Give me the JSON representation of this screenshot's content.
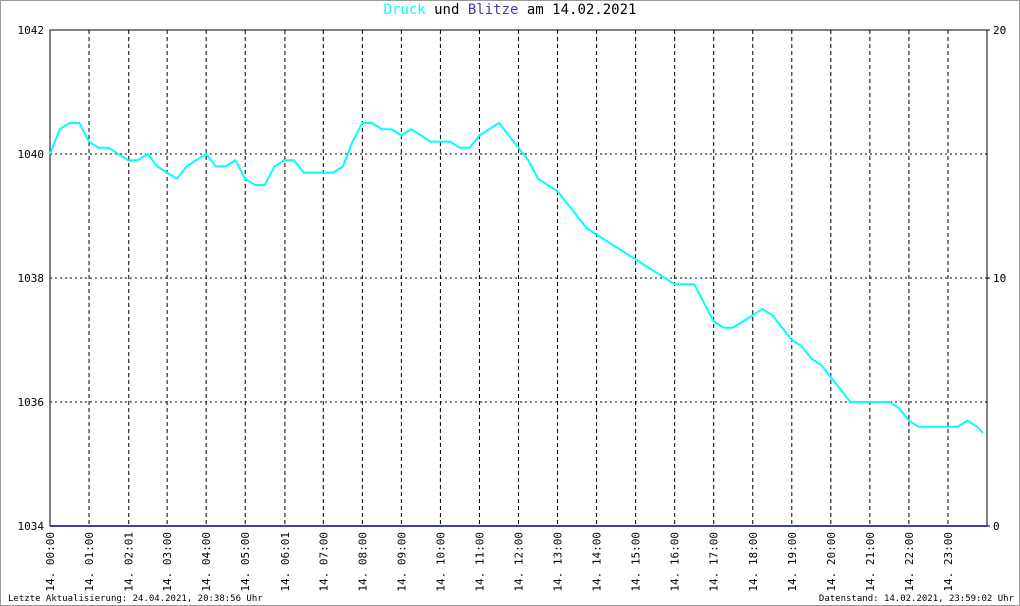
{
  "chart_data": {
    "type": "line",
    "title_connector": "und",
    "title_date": "am 14.02.2021",
    "footer_left": "Letzte Aktualisierung: 24.04.2021, 20:38:56 Uhr",
    "footer_right": "Datenstand: 14.02.2021, 23:59:02 Uhr",
    "xlim": [
      0,
      24
    ],
    "xticks": [
      {
        "value": 0,
        "label": "14. 00:00"
      },
      {
        "value": 1,
        "label": "14. 01:00"
      },
      {
        "value": 2.017,
        "label": "14. 02:01"
      },
      {
        "value": 3,
        "label": "14. 03:00"
      },
      {
        "value": 4,
        "label": "14. 04:00"
      },
      {
        "value": 5,
        "label": "14. 05:00"
      },
      {
        "value": 6.017,
        "label": "14. 06:01"
      },
      {
        "value": 7,
        "label": "14. 07:00"
      },
      {
        "value": 8,
        "label": "14. 08:00"
      },
      {
        "value": 9,
        "label": "14. 09:00"
      },
      {
        "value": 10,
        "label": "14. 10:00"
      },
      {
        "value": 11,
        "label": "14. 11:00"
      },
      {
        "value": 12,
        "label": "14. 12:00"
      },
      {
        "value": 13,
        "label": "14. 13:00"
      },
      {
        "value": 14,
        "label": "14. 14:00"
      },
      {
        "value": 15,
        "label": "14. 15:00"
      },
      {
        "value": 16,
        "label": "14. 16:00"
      },
      {
        "value": 17,
        "label": "14. 17:00"
      },
      {
        "value": 18,
        "label": "14. 18:00"
      },
      {
        "value": 19,
        "label": "14. 19:00"
      },
      {
        "value": 20,
        "label": "14. 20:00"
      },
      {
        "value": 21,
        "label": "14. 21:00"
      },
      {
        "value": 22,
        "label": "14. 22:00"
      },
      {
        "value": 23,
        "label": "14. 23:00"
      }
    ],
    "ylim": [
      1034,
      1042
    ],
    "yticks": [
      1034,
      1036,
      1038,
      1040,
      1042
    ],
    "y2lim": [
      0,
      20
    ],
    "y2ticks": [
      0,
      10,
      20
    ],
    "grid": true,
    "series": [
      {
        "name": "Druck",
        "color": "#00ffff",
        "x": [
          0,
          0.25,
          0.5,
          0.75,
          1,
          1.25,
          1.5,
          1.75,
          2,
          2.25,
          2.5,
          2.75,
          3,
          3.25,
          3.5,
          3.75,
          4,
          4.25,
          4.5,
          4.75,
          5,
          5.25,
          5.5,
          5.75,
          6,
          6.25,
          6.5,
          6.75,
          7,
          7.25,
          7.5,
          7.75,
          8,
          8.25,
          8.5,
          8.75,
          9,
          9.25,
          9.5,
          9.75,
          10,
          10.25,
          10.5,
          10.75,
          11,
          11.25,
          11.5,
          11.75,
          12,
          12.25,
          12.5,
          12.75,
          13,
          13.25,
          13.5,
          13.75,
          14,
          14.25,
          14.5,
          14.75,
          15,
          15.25,
          15.5,
          15.75,
          16,
          16.25,
          16.5,
          16.75,
          17,
          17.25,
          17.5,
          17.75,
          18,
          18.25,
          18.5,
          18.75,
          19,
          19.25,
          19.5,
          19.75,
          20,
          20.25,
          20.5,
          20.75,
          21,
          21.25,
          21.5,
          21.75,
          22,
          22.25,
          22.5,
          22.75,
          23,
          23.25,
          23.5,
          23.75,
          23.9
        ],
        "values": [
          1040.0,
          1040.4,
          1040.5,
          1040.5,
          1040.2,
          1040.1,
          1040.1,
          1040.0,
          1039.9,
          1039.9,
          1040.0,
          1039.8,
          1039.7,
          1039.6,
          1039.8,
          1039.9,
          1040.0,
          1039.8,
          1039.8,
          1039.9,
          1039.6,
          1039.5,
          1039.5,
          1039.8,
          1039.9,
          1039.9,
          1039.7,
          1039.7,
          1039.7,
          1039.7,
          1039.8,
          1040.2,
          1040.5,
          1040.5,
          1040.4,
          1040.4,
          1040.3,
          1040.4,
          1040.3,
          1040.2,
          1040.2,
          1040.2,
          1040.1,
          1040.1,
          1040.3,
          1040.4,
          1040.5,
          1040.3,
          1040.1,
          1039.9,
          1039.6,
          1039.5,
          1039.4,
          1039.2,
          1039.0,
          1038.8,
          1038.7,
          1038.6,
          1038.5,
          1038.4,
          1038.3,
          1038.2,
          1038.1,
          1038.0,
          1037.9,
          1037.9,
          1037.9,
          1037.6,
          1037.3,
          1037.2,
          1037.2,
          1037.3,
          1037.4,
          1037.5,
          1037.4,
          1037.2,
          1037.0,
          1036.9,
          1036.7,
          1036.6,
          1036.4,
          1036.2,
          1036.0,
          1036.0,
          1036.0,
          1036.0,
          1036.0,
          1035.9,
          1035.7,
          1035.6,
          1035.6,
          1035.6,
          1035.6,
          1035.6,
          1035.7,
          1035.6,
          1035.5
        ]
      },
      {
        "name": "Blitze",
        "color": "#4040a0",
        "axis": "y2",
        "x": [
          0,
          24
        ],
        "values": [
          0,
          0
        ]
      }
    ]
  }
}
